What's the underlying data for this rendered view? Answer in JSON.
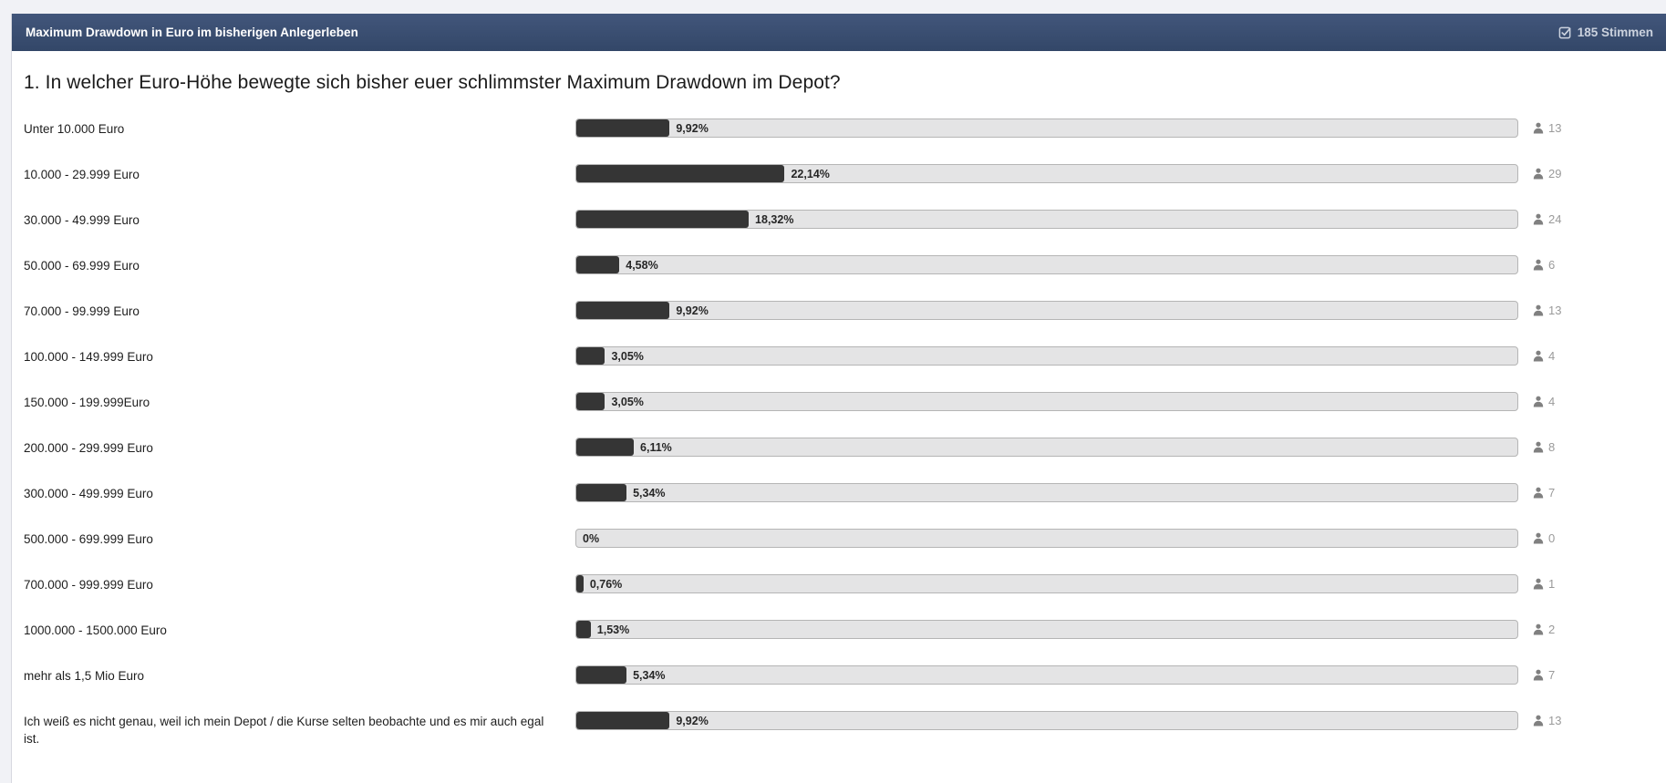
{
  "poll": {
    "title": "Maximum Drawdown in Euro im bisherigen Anlegerleben",
    "votes_label": "185 Stimmen",
    "votes_icon": "checkbox-checked-icon",
    "question": "1. In welcher Euro-Höhe bewegte sich bisher euer schlimmster Maximum Drawdown im Depot?",
    "options": [
      {
        "label": "Unter 10.000 Euro",
        "percent": 9.92,
        "percent_label": "9,92%",
        "votes": "13"
      },
      {
        "label": "10.000 - 29.999 Euro",
        "percent": 22.14,
        "percent_label": "22,14%",
        "votes": "29"
      },
      {
        "label": "30.000 - 49.999 Euro",
        "percent": 18.32,
        "percent_label": "18,32%",
        "votes": "24"
      },
      {
        "label": "50.000 - 69.999 Euro",
        "percent": 4.58,
        "percent_label": "4,58%",
        "votes": "6"
      },
      {
        "label": "70.000 - 99.999 Euro",
        "percent": 9.92,
        "percent_label": "9,92%",
        "votes": "13"
      },
      {
        "label": "100.000 - 149.999 Euro",
        "percent": 3.05,
        "percent_label": "3,05%",
        "votes": "4"
      },
      {
        "label": "150.000 - 199.999Euro",
        "percent": 3.05,
        "percent_label": "3,05%",
        "votes": "4"
      },
      {
        "label": "200.000 - 299.999 Euro",
        "percent": 6.11,
        "percent_label": "6,11%",
        "votes": "8"
      },
      {
        "label": "300.000 - 499.999 Euro",
        "percent": 5.34,
        "percent_label": "5,34%",
        "votes": "7"
      },
      {
        "label": "500.000 - 699.999 Euro",
        "percent": 0,
        "percent_label": "0%",
        "votes": "0"
      },
      {
        "label": "700.000 - 999.999 Euro",
        "percent": 0.76,
        "percent_label": "0,76%",
        "votes": "1"
      },
      {
        "label": "1000.000 - 1500.000 Euro",
        "percent": 1.53,
        "percent_label": "1,53%",
        "votes": "2"
      },
      {
        "label": "mehr als 1,5 Mio Euro",
        "percent": 5.34,
        "percent_label": "5,34%",
        "votes": "7"
      },
      {
        "label": "Ich weiß es nicht genau, weil ich mein Depot / die Kurse selten beobachte und es mir auch egal ist.",
        "percent": 9.92,
        "percent_label": "9,92%",
        "votes": "13"
      }
    ],
    "colors": {
      "header_gradient_top": "#42567b",
      "header_gradient_bottom": "#334768",
      "bar_fill": "#353535",
      "bar_track": "#e4e4e5",
      "bar_border": "#b5b5b5",
      "page_background": "#f1f2f6"
    }
  }
}
